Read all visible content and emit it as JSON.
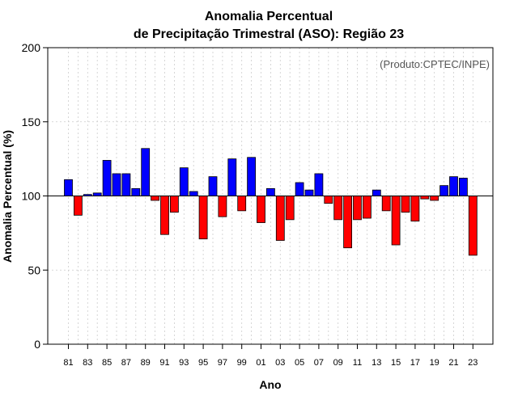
{
  "chart_data": {
    "type": "bar",
    "title_line1": "Anomalia Percentual",
    "title_line2": "de Precipitação Trimestral (ASO): Região 23",
    "xlabel": "Ano",
    "ylabel": "Anomalia Percentual (%)",
    "credit": "(Produto:CPTEC/INPE)",
    "ylim": [
      0,
      200
    ],
    "yticks": [
      0,
      50,
      100,
      150,
      200
    ],
    "baseline": 100,
    "grid": true,
    "colors": {
      "above": "#0000ff",
      "below": "#ff0000",
      "edge": "#000000",
      "grid": "#cccccc"
    },
    "categories": [
      "81",
      "82",
      "83",
      "84",
      "85",
      "86",
      "87",
      "88",
      "89",
      "90",
      "91",
      "92",
      "93",
      "94",
      "95",
      "96",
      "97",
      "98",
      "99",
      "00",
      "01",
      "02",
      "03",
      "04",
      "05",
      "06",
      "07",
      "08",
      "09",
      "10",
      "11",
      "12",
      "13",
      "14",
      "15",
      "16",
      "17",
      "18",
      "19",
      "20",
      "21",
      "22",
      "23"
    ],
    "xtick_labels": [
      "81",
      "83",
      "85",
      "87",
      "89",
      "91",
      "93",
      "95",
      "97",
      "99",
      "01",
      "03",
      "05",
      "07",
      "09",
      "11",
      "13",
      "15",
      "17",
      "19",
      "21",
      "23"
    ],
    "values": [
      111,
      87,
      101,
      102,
      124,
      115,
      115,
      105,
      132,
      97,
      74,
      89,
      119,
      103,
      71,
      113,
      86,
      125,
      90,
      126,
      82,
      105,
      70,
      84,
      109,
      104,
      115,
      95,
      84,
      65,
      84,
      85,
      104,
      90,
      67,
      89,
      83,
      98,
      97,
      107,
      113,
      112,
      60
    ]
  }
}
